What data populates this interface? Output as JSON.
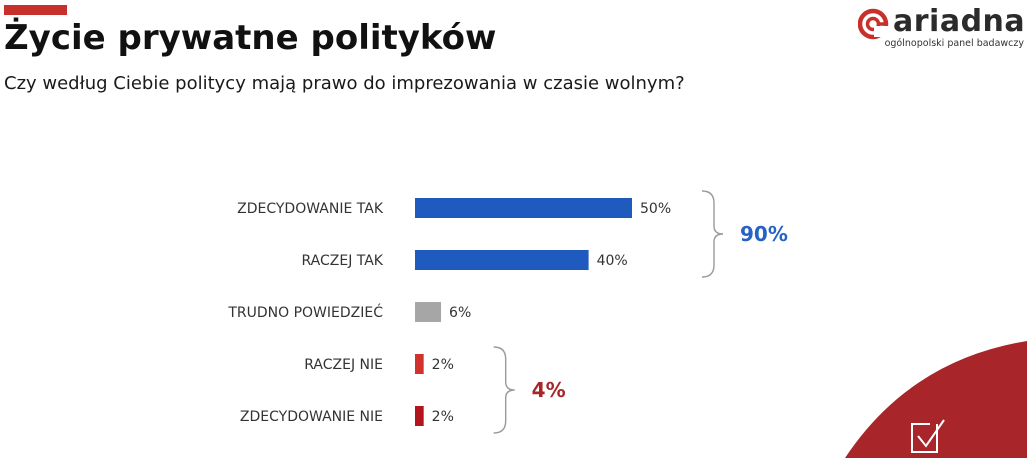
{
  "header": {
    "title": "Życie prywatne polityków",
    "subtitle": "Czy według Ciebie politycy mają prawo do imprezowania w czasie wolnym?",
    "accent_color": "#c8302b"
  },
  "brand": {
    "name": "ariadna",
    "tagline": "ogólnopolski panel badawczy",
    "logo_icon": "ariadna-logo-icon",
    "color": "#c8302b"
  },
  "chart_data": {
    "type": "bar",
    "orientation": "horizontal",
    "categories": [
      "ZDECYDOWANIE TAK",
      "RACZEJ TAK",
      "TRUDNO POWIEDZIEĆ",
      "RACZEJ NIE",
      "ZDECYDOWANIE NIE"
    ],
    "values": [
      50,
      40,
      6,
      2,
      2
    ],
    "value_labels": [
      "50%",
      "40%",
      "6%",
      "2%",
      "2%"
    ],
    "bar_colors": [
      "#1f5bbf",
      "#1f5bbf",
      "#a6a6a6",
      "#d2322d",
      "#b0161b"
    ],
    "xlim": [
      0,
      100
    ],
    "grid": false,
    "groups": [
      {
        "label": "90%",
        "members": [
          0,
          1
        ],
        "color": "#2563c4"
      },
      {
        "label": "4%",
        "members": [
          3,
          4
        ],
        "color": "#a8262a"
      }
    ]
  },
  "decor": {
    "corner_color": "#a8262a",
    "corner_icon": "checkbox-check-icon"
  }
}
